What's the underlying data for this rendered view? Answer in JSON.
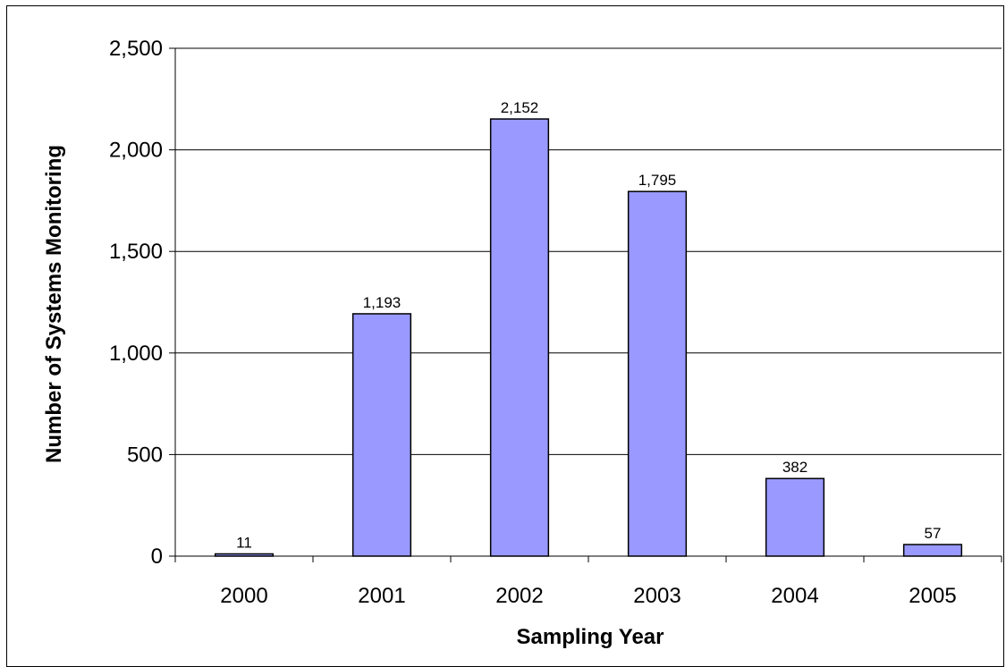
{
  "chart_data": {
    "type": "bar",
    "title": "",
    "xlabel": "Sampling Year",
    "ylabel": "Number of Systems Monitoring",
    "categories": [
      "2000",
      "2001",
      "2002",
      "2003",
      "2004",
      "2005"
    ],
    "values": [
      11,
      1193,
      2152,
      1795,
      382,
      57
    ],
    "value_labels": [
      "11",
      "1,193",
      "2,152",
      "1,795",
      "382",
      "57"
    ],
    "ylim": [
      0,
      2500
    ],
    "yticks": [
      0,
      500,
      1000,
      1500,
      2000,
      2500
    ],
    "ytick_labels": [
      "0",
      "500",
      "1,000",
      "1,500",
      "2,000",
      "2,500"
    ],
    "grid": "horizontal",
    "legend": "none",
    "bar_color": "#9999ff",
    "bar_edge_color": "#000000"
  }
}
